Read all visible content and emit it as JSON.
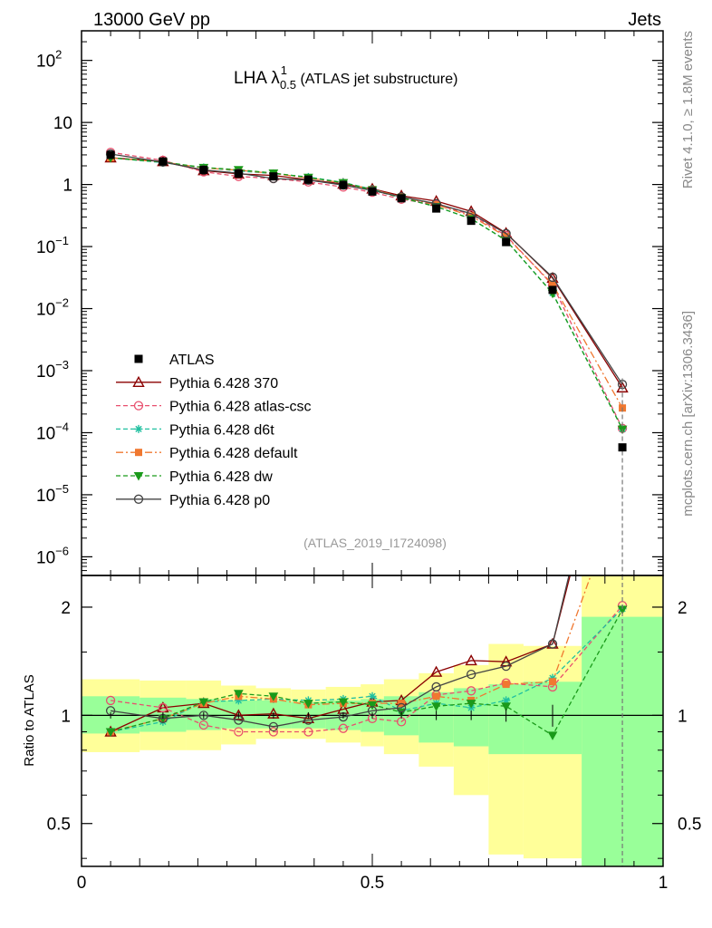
{
  "header": {
    "left": "13000 GeV pp",
    "right": "Jets",
    "side_top": "Rivet 4.1.0, ≥ 1.8M events",
    "side_bottom": "mcplots.cern.ch [arXiv:1306.3436]",
    "plot_title": "LHA λ",
    "plot_title_sup": "1",
    "plot_title_sub": "0.5",
    "plot_title_rest": " (ATLAS jet substructure)",
    "analysis_id": "(ATLAS_2019_I1724098)"
  },
  "colors": {
    "atlas": "#000000",
    "p370": "#8b0000",
    "atlas_csc": "#e8506e",
    "d6t": "#20c0a0",
    "default": "#f07830",
    "dw": "#1a9a1a",
    "p0": "#444444",
    "band_yellow": "#ffff99",
    "band_green": "#99ff99"
  },
  "chart_data": {
    "type": "line",
    "xlim": [
      0,
      1
    ],
    "main": {
      "yscale": "log",
      "ylim": [
        5e-07,
        300
      ],
      "y_ticks": [
        {
          "v": 100,
          "base": "10",
          "exp": "2"
        },
        {
          "v": 10,
          "base": "10",
          "exp": ""
        },
        {
          "v": 1,
          "base": "1",
          "exp": ""
        },
        {
          "v": 0.1,
          "base": "10",
          "exp": "−1"
        },
        {
          "v": 0.01,
          "base": "10",
          "exp": "−2"
        },
        {
          "v": 0.001,
          "base": "10",
          "exp": "−3"
        },
        {
          "v": 0.0001,
          "base": "10",
          "exp": "−4"
        },
        {
          "v": 1e-05,
          "base": "10",
          "exp": "−5"
        },
        {
          "v": 1e-06,
          "base": "10",
          "exp": "−6"
        }
      ]
    },
    "ratio": {
      "yscale": "log",
      "ylim": [
        0.38,
        2.45
      ],
      "ylabel": "Ratio to ATLAS",
      "y_ticks": [
        {
          "v": 0.5,
          "label": "0.5"
        },
        {
          "v": 1,
          "label": "1"
        },
        {
          "v": 2,
          "label": "2"
        }
      ]
    },
    "x_ticks": [
      {
        "v": 0,
        "label": "0"
      },
      {
        "v": 0.5,
        "label": "0.5"
      },
      {
        "v": 1,
        "label": "1"
      }
    ],
    "bins": [
      [
        0,
        0.1
      ],
      [
        0.1,
        0.18
      ],
      [
        0.18,
        0.24
      ],
      [
        0.24,
        0.3
      ],
      [
        0.3,
        0.36
      ],
      [
        0.36,
        0.42
      ],
      [
        0.42,
        0.48
      ],
      [
        0.48,
        0.52
      ],
      [
        0.52,
        0.58
      ],
      [
        0.58,
        0.64
      ],
      [
        0.64,
        0.7
      ],
      [
        0.7,
        0.76
      ],
      [
        0.76,
        0.86
      ],
      [
        0.86,
        1.0
      ]
    ],
    "x": [
      0.05,
      0.14,
      0.21,
      0.27,
      0.33,
      0.39,
      0.45,
      0.5,
      0.55,
      0.61,
      0.67,
      0.73,
      0.81,
      0.93
    ],
    "atlas_values": [
      3.0,
      2.35,
      1.72,
      1.5,
      1.35,
      1.2,
      0.98,
      0.77,
      0.6,
      0.41,
      0.26,
      0.118,
      0.02,
      5.8e-05
    ],
    "band_yellow": [
      [
        0.79,
        1.26
      ],
      [
        0.8,
        1.25
      ],
      [
        0.8,
        1.25
      ],
      [
        0.83,
        1.21
      ],
      [
        0.86,
        1.19
      ],
      [
        0.86,
        1.18
      ],
      [
        0.84,
        1.2
      ],
      [
        0.82,
        1.22
      ],
      [
        0.78,
        1.26
      ],
      [
        0.72,
        1.31
      ],
      [
        0.6,
        1.38
      ],
      [
        0.41,
        1.58
      ],
      [
        0.4,
        1.56
      ],
      [
        0.38,
        2.45
      ]
    ],
    "band_green": [
      [
        0.89,
        1.13
      ],
      [
        0.9,
        1.12
      ],
      [
        0.91,
        1.11
      ],
      [
        0.92,
        1.1
      ],
      [
        0.92,
        1.1
      ],
      [
        0.92,
        1.09
      ],
      [
        0.91,
        1.1
      ],
      [
        0.9,
        1.11
      ],
      [
        0.88,
        1.13
      ],
      [
        0.84,
        1.16
      ],
      [
        0.82,
        1.19
      ],
      [
        0.78,
        1.22
      ],
      [
        0.78,
        1.24
      ],
      [
        0.38,
        1.88
      ]
    ],
    "atlas_ratio_err": [
      0.02,
      0.02,
      0.02,
      0.02,
      0.02,
      0.02,
      0.02,
      0.02,
      0.02,
      0.03,
      0.03,
      0.04,
      0.07,
      0.5
    ],
    "series": [
      {
        "name": "Pythia 6.428 370",
        "color_key": "p370",
        "marker": "triangle",
        "dash": "",
        "values": [
          2.7,
          2.35,
          1.68,
          1.48,
          1.4,
          1.19,
          1.02,
          0.85,
          0.66,
          0.54,
          0.37,
          0.165,
          0.031,
          0.00053
        ],
        "ratio": [
          0.9,
          1.05,
          1.08,
          1.0,
          1.01,
          0.98,
          1.04,
          1.09,
          1.1,
          1.32,
          1.42,
          1.41,
          1.58,
          9.1
        ]
      },
      {
        "name": "Pythia 6.428 atlas-csc",
        "color_key": "atlas_csc",
        "marker": "circle",
        "dash": "5,3",
        "values": [
          3.3,
          2.45,
          1.6,
          1.35,
          1.25,
          1.1,
          0.91,
          0.75,
          0.58,
          0.47,
          0.33,
          0.15,
          0.024,
          0.000117
        ],
        "ratio": [
          1.1,
          1.05,
          0.94,
          0.9,
          0.9,
          0.9,
          0.92,
          0.98,
          0.96,
          1.14,
          1.17,
          1.23,
          1.2,
          2.02
        ]
      },
      {
        "name": "Pythia 6.428 d6t",
        "color_key": "d6t",
        "marker": "star",
        "dash": "5,3",
        "values": [
          2.7,
          2.25,
          1.88,
          1.65,
          1.5,
          1.32,
          1.08,
          0.84,
          0.61,
          0.44,
          0.28,
          0.126,
          0.0178,
          0.000115
        ],
        "ratio": [
          0.9,
          0.96,
          1.09,
          1.1,
          1.11,
          1.1,
          1.11,
          1.13,
          1.03,
          1.08,
          1.05,
          1.1,
          1.27,
          1.98
        ]
      },
      {
        "name": "Pythia 6.428 default",
        "color_key": "default",
        "marker": "square",
        "dash": "8,3,2,3",
        "values": [
          2.7,
          2.3,
          1.85,
          1.7,
          1.5,
          1.28,
          1.06,
          0.83,
          0.63,
          0.47,
          0.31,
          0.145,
          0.0248,
          0.00025
        ],
        "ratio": [
          0.9,
          0.98,
          1.08,
          1.13,
          1.11,
          1.07,
          1.08,
          1.08,
          1.08,
          1.13,
          1.1,
          1.22,
          1.24,
          4.3
        ]
      },
      {
        "name": "Pythia 6.428 dw",
        "color_key": "dw",
        "marker": "tri-down",
        "dash": "5,3",
        "values": [
          2.7,
          2.3,
          1.88,
          1.73,
          1.53,
          1.3,
          1.07,
          0.82,
          0.61,
          0.44,
          0.28,
          0.126,
          0.0176,
          0.000114
        ],
        "ratio": [
          0.9,
          0.98,
          1.09,
          1.15,
          1.13,
          1.08,
          1.09,
          1.07,
          1.02,
          1.06,
          1.08,
          1.06,
          0.88,
          1.97
        ]
      },
      {
        "name": "Pythia 6.428 p0",
        "color_key": "p0",
        "marker": "circle",
        "dash": "",
        "values": [
          3.1,
          2.3,
          1.72,
          1.52,
          1.25,
          1.18,
          0.98,
          0.8,
          0.63,
          0.49,
          0.34,
          0.162,
          0.032,
          0.0006
        ],
        "ratio": [
          1.03,
          0.98,
          1.0,
          0.97,
          0.93,
          0.97,
          0.99,
          1.03,
          1.05,
          1.2,
          1.3,
          1.37,
          1.58,
          10.3
        ]
      }
    ],
    "legend": [
      {
        "label": "ATLAS"
      },
      {
        "label": "Pythia 6.428 370"
      },
      {
        "label": "Pythia 6.428 atlas-csc"
      },
      {
        "label": "Pythia 6.428 d6t"
      },
      {
        "label": "Pythia 6.428 default"
      },
      {
        "label": "Pythia 6.428 dw"
      },
      {
        "label": "Pythia 6.428 p0"
      }
    ]
  }
}
